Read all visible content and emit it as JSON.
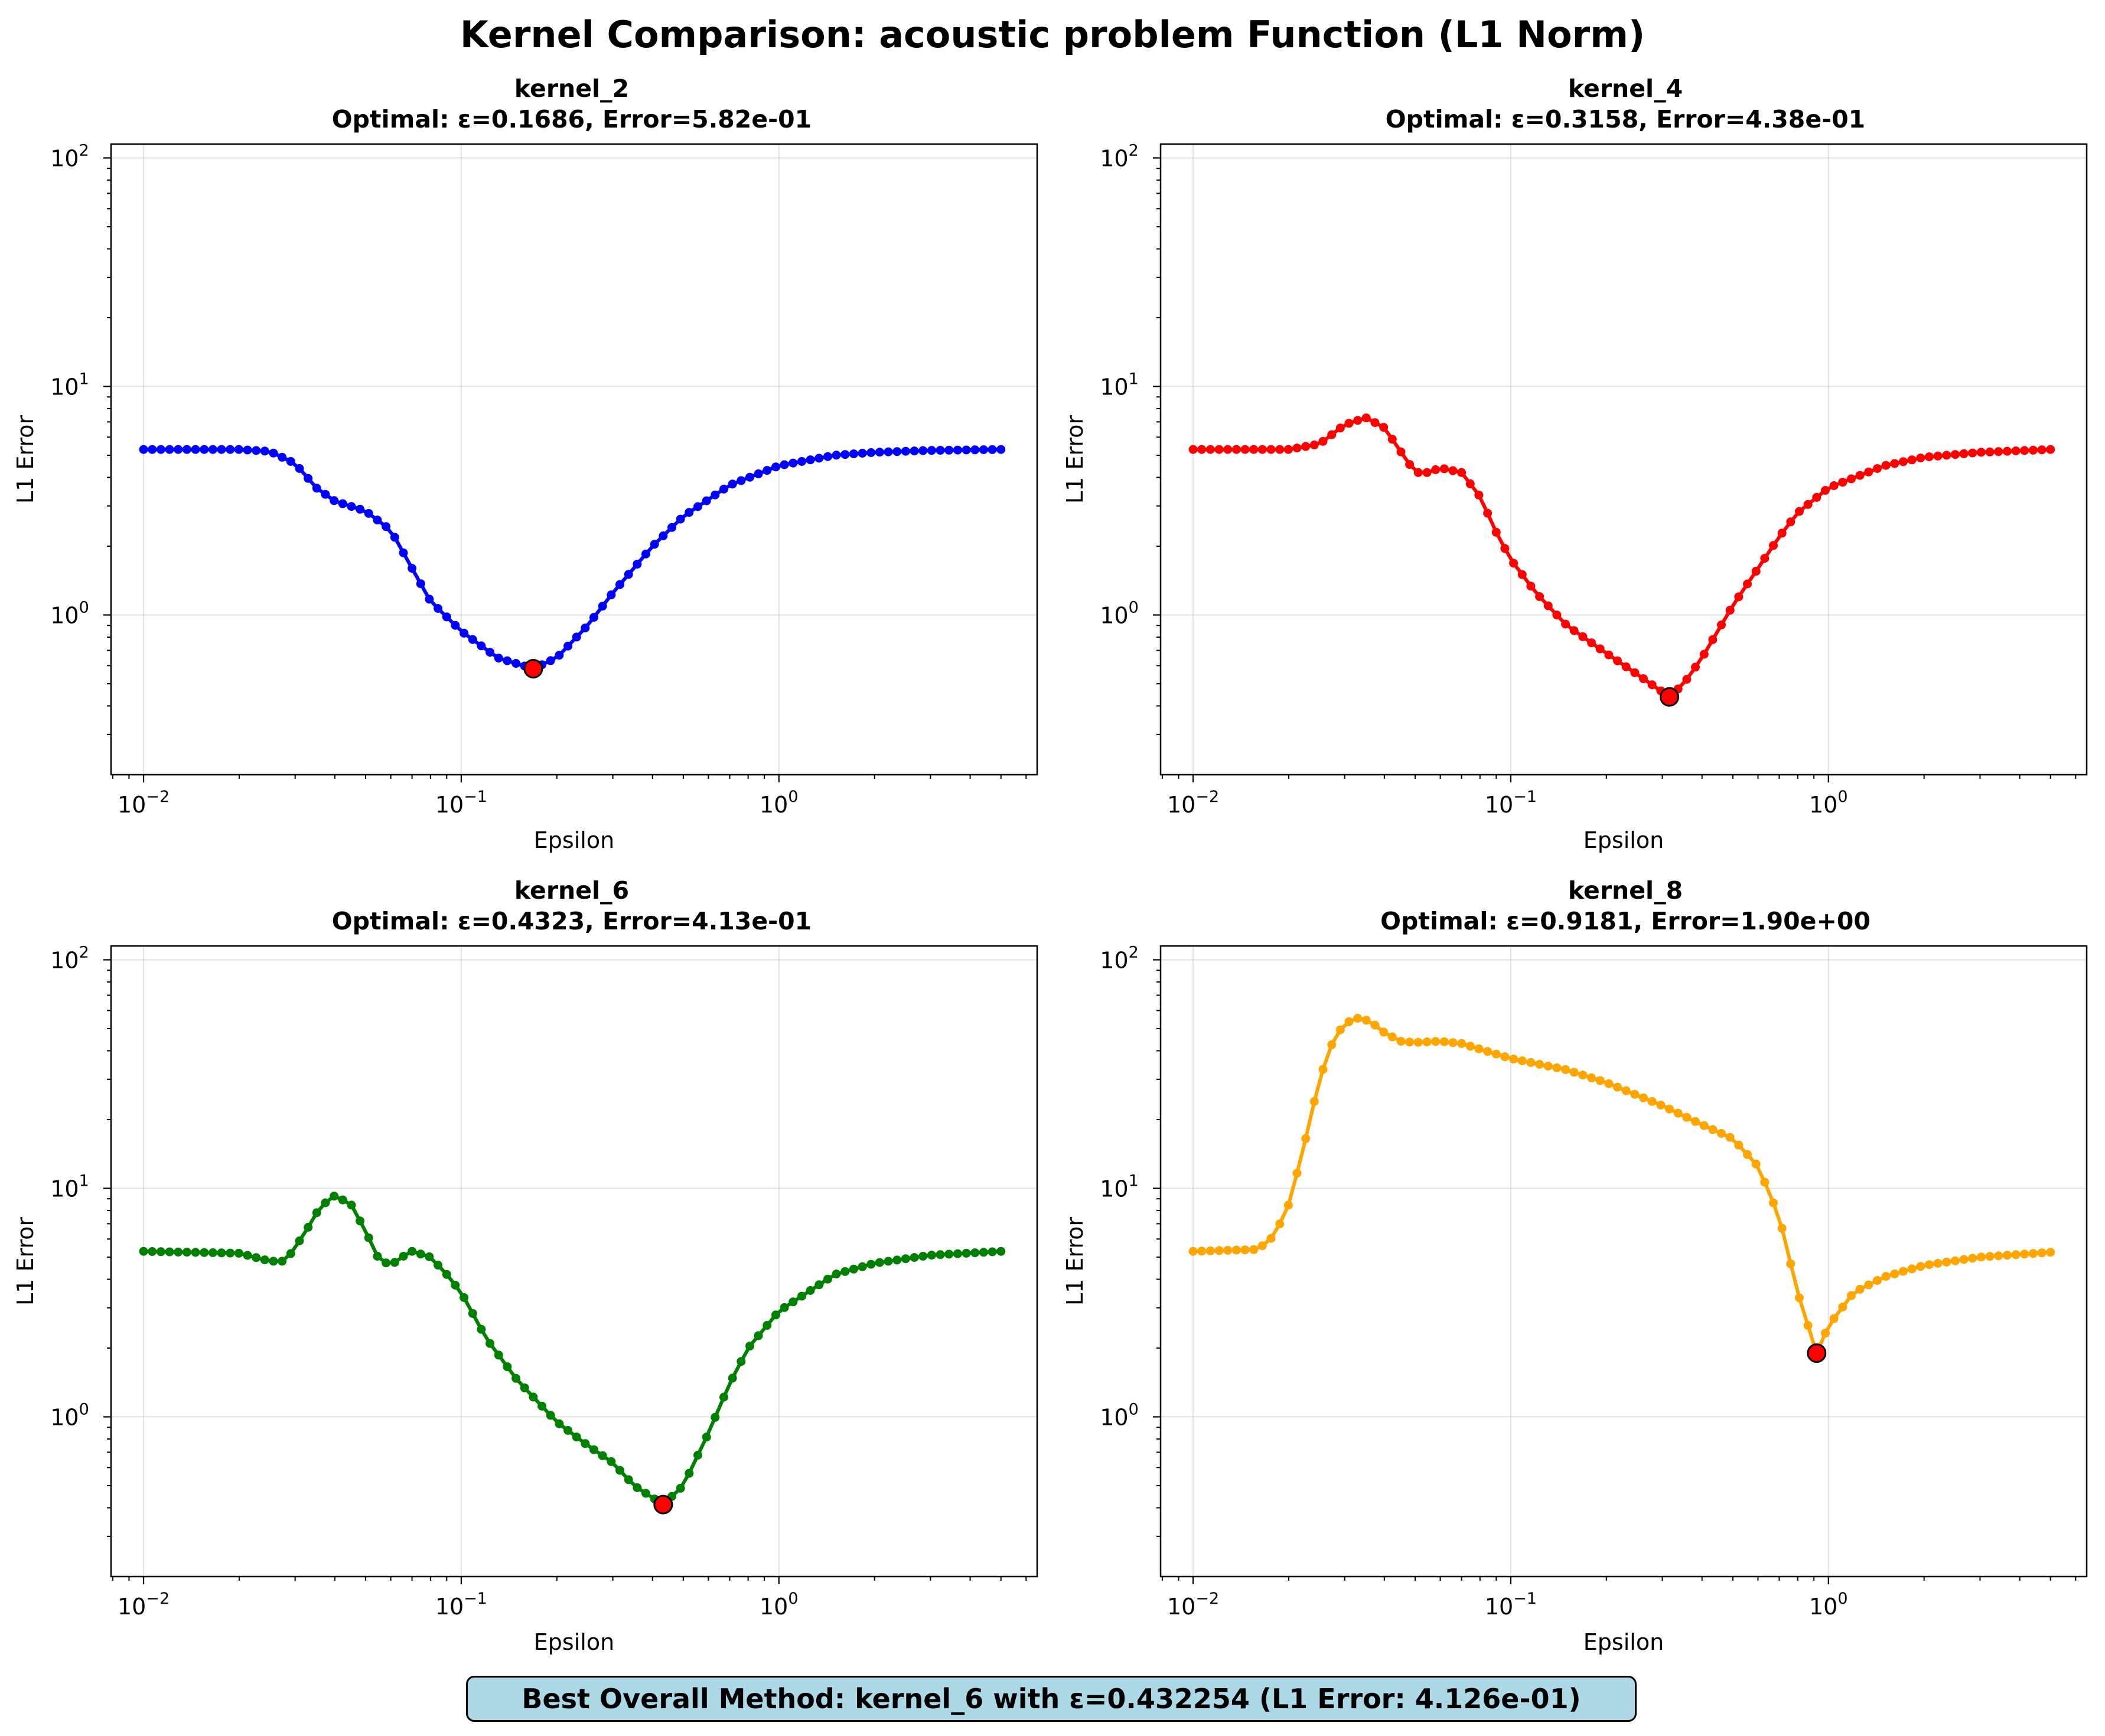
{
  "figure_title": "Kernel Comparison: acoustic problem Function (L1 Norm)",
  "best_overall": "Best Overall Method: kernel_6 with ε=0.432254 (L1 Error: 4.126e-01)",
  "chart_data": [
    {
      "type": "line",
      "title": "kernel_2",
      "subtitle": "Optimal: ε=0.1686, Error=5.82e-01",
      "xlabel": "Epsilon",
      "ylabel": "L1 Error",
      "xscale": "log",
      "yscale": "log",
      "xlim": [
        0.0079,
        6.5
      ],
      "ylim": [
        0.2,
        115
      ],
      "xticks": [
        {
          "value": 0.01,
          "base": "10",
          "exp": "−2"
        },
        {
          "value": 0.1,
          "base": "10",
          "exp": "−1"
        },
        {
          "value": 1,
          "base": "10",
          "exp": "0"
        }
      ],
      "yticks": [
        {
          "value": 1,
          "base": "10",
          "exp": "0"
        },
        {
          "value": 10,
          "base": "10",
          "exp": "1"
        },
        {
          "value": 100,
          "base": "10",
          "exp": "2"
        }
      ],
      "grid": true,
      "color": "#0000ff",
      "optimal": {
        "x": 0.1686,
        "y": 0.582,
        "color": "#ff0000"
      },
      "x_range": [
        0.01,
        5.0
      ],
      "n_points": 100,
      "curve_points": [
        [
          0.01,
          5.3
        ],
        [
          0.02,
          5.3
        ],
        [
          0.025,
          5.2
        ],
        [
          0.03,
          4.6
        ],
        [
          0.035,
          3.6
        ],
        [
          0.04,
          3.15
        ],
        [
          0.05,
          2.85
        ],
        [
          0.06,
          2.35
        ],
        [
          0.07,
          1.6
        ],
        [
          0.08,
          1.15
        ],
        [
          0.1,
          0.85
        ],
        [
          0.13,
          0.65
        ],
        [
          0.1686,
          0.582
        ],
        [
          0.2,
          0.65
        ],
        [
          0.25,
          0.9
        ],
        [
          0.3,
          1.25
        ],
        [
          0.4,
          2.0
        ],
        [
          0.5,
          2.7
        ],
        [
          0.7,
          3.7
        ],
        [
          1.0,
          4.5
        ],
        [
          1.5,
          5.0
        ],
        [
          2.0,
          5.15
        ],
        [
          3.0,
          5.25
        ],
        [
          5.0,
          5.3
        ]
      ]
    },
    {
      "type": "line",
      "title": "kernel_4",
      "subtitle": "Optimal: ε=0.3158, Error=4.38e-01",
      "xlabel": "Epsilon",
      "ylabel": "L1 Error",
      "xscale": "log",
      "yscale": "log",
      "xlim": [
        0.0079,
        6.5
      ],
      "ylim": [
        0.2,
        115
      ],
      "xticks": [
        {
          "value": 0.01,
          "base": "10",
          "exp": "−2"
        },
        {
          "value": 0.1,
          "base": "10",
          "exp": "−1"
        },
        {
          "value": 1,
          "base": "10",
          "exp": "0"
        }
      ],
      "yticks": [
        {
          "value": 1,
          "base": "10",
          "exp": "0"
        },
        {
          "value": 10,
          "base": "10",
          "exp": "1"
        },
        {
          "value": 100,
          "base": "10",
          "exp": "2"
        }
      ],
      "grid": true,
      "color": "#ff0000",
      "optimal": {
        "x": 0.3158,
        "y": 0.438,
        "color": "#ff0000"
      },
      "x_range": [
        0.01,
        5.0
      ],
      "n_points": 100,
      "curve_points": [
        [
          0.01,
          5.3
        ],
        [
          0.02,
          5.3
        ],
        [
          0.025,
          5.6
        ],
        [
          0.03,
          6.8
        ],
        [
          0.035,
          7.3
        ],
        [
          0.04,
          6.6
        ],
        [
          0.045,
          5.2
        ],
        [
          0.05,
          4.2
        ],
        [
          0.055,
          4.2
        ],
        [
          0.06,
          4.4
        ],
        [
          0.07,
          4.2
        ],
        [
          0.08,
          3.3
        ],
        [
          0.09,
          2.3
        ],
        [
          0.1,
          1.75
        ],
        [
          0.12,
          1.25
        ],
        [
          0.15,
          0.9
        ],
        [
          0.2,
          0.68
        ],
        [
          0.25,
          0.55
        ],
        [
          0.3158,
          0.438
        ],
        [
          0.35,
          0.5
        ],
        [
          0.4,
          0.65
        ],
        [
          0.5,
          1.1
        ],
        [
          0.6,
          1.6
        ],
        [
          0.7,
          2.2
        ],
        [
          0.8,
          2.8
        ],
        [
          1.0,
          3.6
        ],
        [
          1.5,
          4.5
        ],
        [
          2.0,
          4.9
        ],
        [
          3.0,
          5.15
        ],
        [
          5.0,
          5.3
        ]
      ]
    },
    {
      "type": "line",
      "title": "kernel_6",
      "subtitle": "Optimal: ε=0.4323, Error=4.13e-01",
      "xlabel": "Epsilon",
      "ylabel": "L1 Error",
      "xscale": "log",
      "yscale": "log",
      "xlim": [
        0.0079,
        6.5
      ],
      "ylim": [
        0.2,
        115
      ],
      "xticks": [
        {
          "value": 0.01,
          "base": "10",
          "exp": "−2"
        },
        {
          "value": 0.1,
          "base": "10",
          "exp": "−1"
        },
        {
          "value": 1,
          "base": "10",
          "exp": "0"
        }
      ],
      "yticks": [
        {
          "value": 1,
          "base": "10",
          "exp": "0"
        },
        {
          "value": 10,
          "base": "10",
          "exp": "1"
        },
        {
          "value": 100,
          "base": "10",
          "exp": "2"
        }
      ],
      "grid": true,
      "color": "#008000",
      "optimal": {
        "x": 0.4323,
        "y": 0.413,
        "color": "#ff0000"
      },
      "x_range": [
        0.01,
        5.0
      ],
      "n_points": 100,
      "curve_points": [
        [
          0.01,
          5.3
        ],
        [
          0.02,
          5.2
        ],
        [
          0.025,
          4.8
        ],
        [
          0.028,
          4.8
        ],
        [
          0.032,
          6.3
        ],
        [
          0.036,
          8.3
        ],
        [
          0.04,
          9.3
        ],
        [
          0.045,
          8.5
        ],
        [
          0.05,
          6.5
        ],
        [
          0.055,
          4.9
        ],
        [
          0.06,
          4.6
        ],
        [
          0.065,
          5.0
        ],
        [
          0.07,
          5.3
        ],
        [
          0.08,
          5.0
        ],
        [
          0.09,
          4.2
        ],
        [
          0.1,
          3.5
        ],
        [
          0.12,
          2.2
        ],
        [
          0.15,
          1.45
        ],
        [
          0.2,
          0.95
        ],
        [
          0.25,
          0.75
        ],
        [
          0.3,
          0.63
        ],
        [
          0.35,
          0.5
        ],
        [
          0.4323,
          0.413
        ],
        [
          0.5,
          0.5
        ],
        [
          0.6,
          0.85
        ],
        [
          0.7,
          1.4
        ],
        [
          0.8,
          2.0
        ],
        [
          1.0,
          2.9
        ],
        [
          1.5,
          4.2
        ],
        [
          2.0,
          4.7
        ],
        [
          3.0,
          5.1
        ],
        [
          5.0,
          5.3
        ]
      ]
    },
    {
      "type": "line",
      "title": "kernel_8",
      "subtitle": "Optimal: ε=0.9181, Error=1.90e+00",
      "xlabel": "Epsilon",
      "ylabel": "L1 Error",
      "xscale": "log",
      "yscale": "log",
      "xlim": [
        0.0079,
        6.5
      ],
      "ylim": [
        0.2,
        115
      ],
      "xticks": [
        {
          "value": 0.01,
          "base": "10",
          "exp": "−2"
        },
        {
          "value": 0.1,
          "base": "10",
          "exp": "−1"
        },
        {
          "value": 1,
          "base": "10",
          "exp": "0"
        }
      ],
      "yticks": [
        {
          "value": 1,
          "base": "10",
          "exp": "0"
        },
        {
          "value": 10,
          "base": "10",
          "exp": "1"
        },
        {
          "value": 100,
          "base": "10",
          "exp": "2"
        }
      ],
      "grid": true,
      "color": "#ffa500",
      "optimal": {
        "x": 0.9181,
        "y": 1.9,
        "color": "#ff0000"
      },
      "x_range": [
        0.01,
        5.0
      ],
      "n_points": 100,
      "curve_points": [
        [
          0.01,
          5.3
        ],
        [
          0.016,
          5.4
        ],
        [
          0.018,
          6.2
        ],
        [
          0.02,
          8.5
        ],
        [
          0.022,
          14
        ],
        [
          0.025,
          30
        ],
        [
          0.028,
          47
        ],
        [
          0.032,
          56
        ],
        [
          0.036,
          54
        ],
        [
          0.04,
          48
        ],
        [
          0.045,
          44
        ],
        [
          0.05,
          43.5
        ],
        [
          0.06,
          44
        ],
        [
          0.07,
          43
        ],
        [
          0.1,
          37
        ],
        [
          0.15,
          33
        ],
        [
          0.2,
          29
        ],
        [
          0.3,
          23
        ],
        [
          0.4,
          19
        ],
        [
          0.5,
          16.5
        ],
        [
          0.6,
          12.5
        ],
        [
          0.7,
          7.5
        ],
        [
          0.8,
          3.5
        ],
        [
          0.9181,
          1.9
        ],
        [
          1.0,
          2.5
        ],
        [
          1.2,
          3.5
        ],
        [
          1.5,
          4.1
        ],
        [
          2.0,
          4.6
        ],
        [
          3.0,
          5.0
        ],
        [
          5.0,
          5.25
        ]
      ]
    }
  ]
}
